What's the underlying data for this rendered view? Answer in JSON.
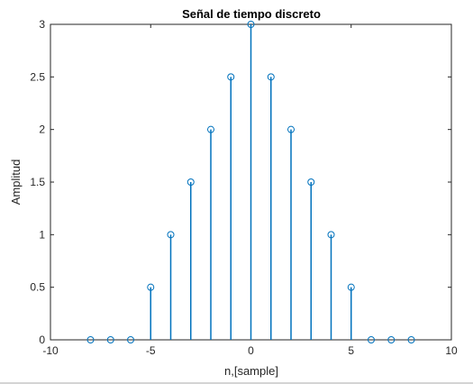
{
  "chart_data": {
    "type": "stem",
    "title": "Señal de tiempo discreto",
    "xlabel": "n,[sample]",
    "ylabel": "Amplitud",
    "xlim": [
      -10,
      10
    ],
    "ylim": [
      0,
      3
    ],
    "xticks": [
      -10,
      -5,
      0,
      5,
      10
    ],
    "yticks": [
      0,
      0.5,
      1,
      1.5,
      2,
      2.5,
      3
    ],
    "grid": false,
    "series": [
      {
        "x": [
          -8,
          -7,
          -6,
          -5,
          -4,
          -3,
          -2,
          -1,
          0,
          1,
          2,
          3,
          4,
          5,
          6,
          7,
          8
        ],
        "values": [
          0,
          0,
          0,
          0.5,
          1,
          1.5,
          2,
          2.5,
          3,
          2.5,
          2,
          1.5,
          1,
          0.5,
          0,
          0,
          0
        ],
        "color": "#0072BD"
      }
    ]
  }
}
